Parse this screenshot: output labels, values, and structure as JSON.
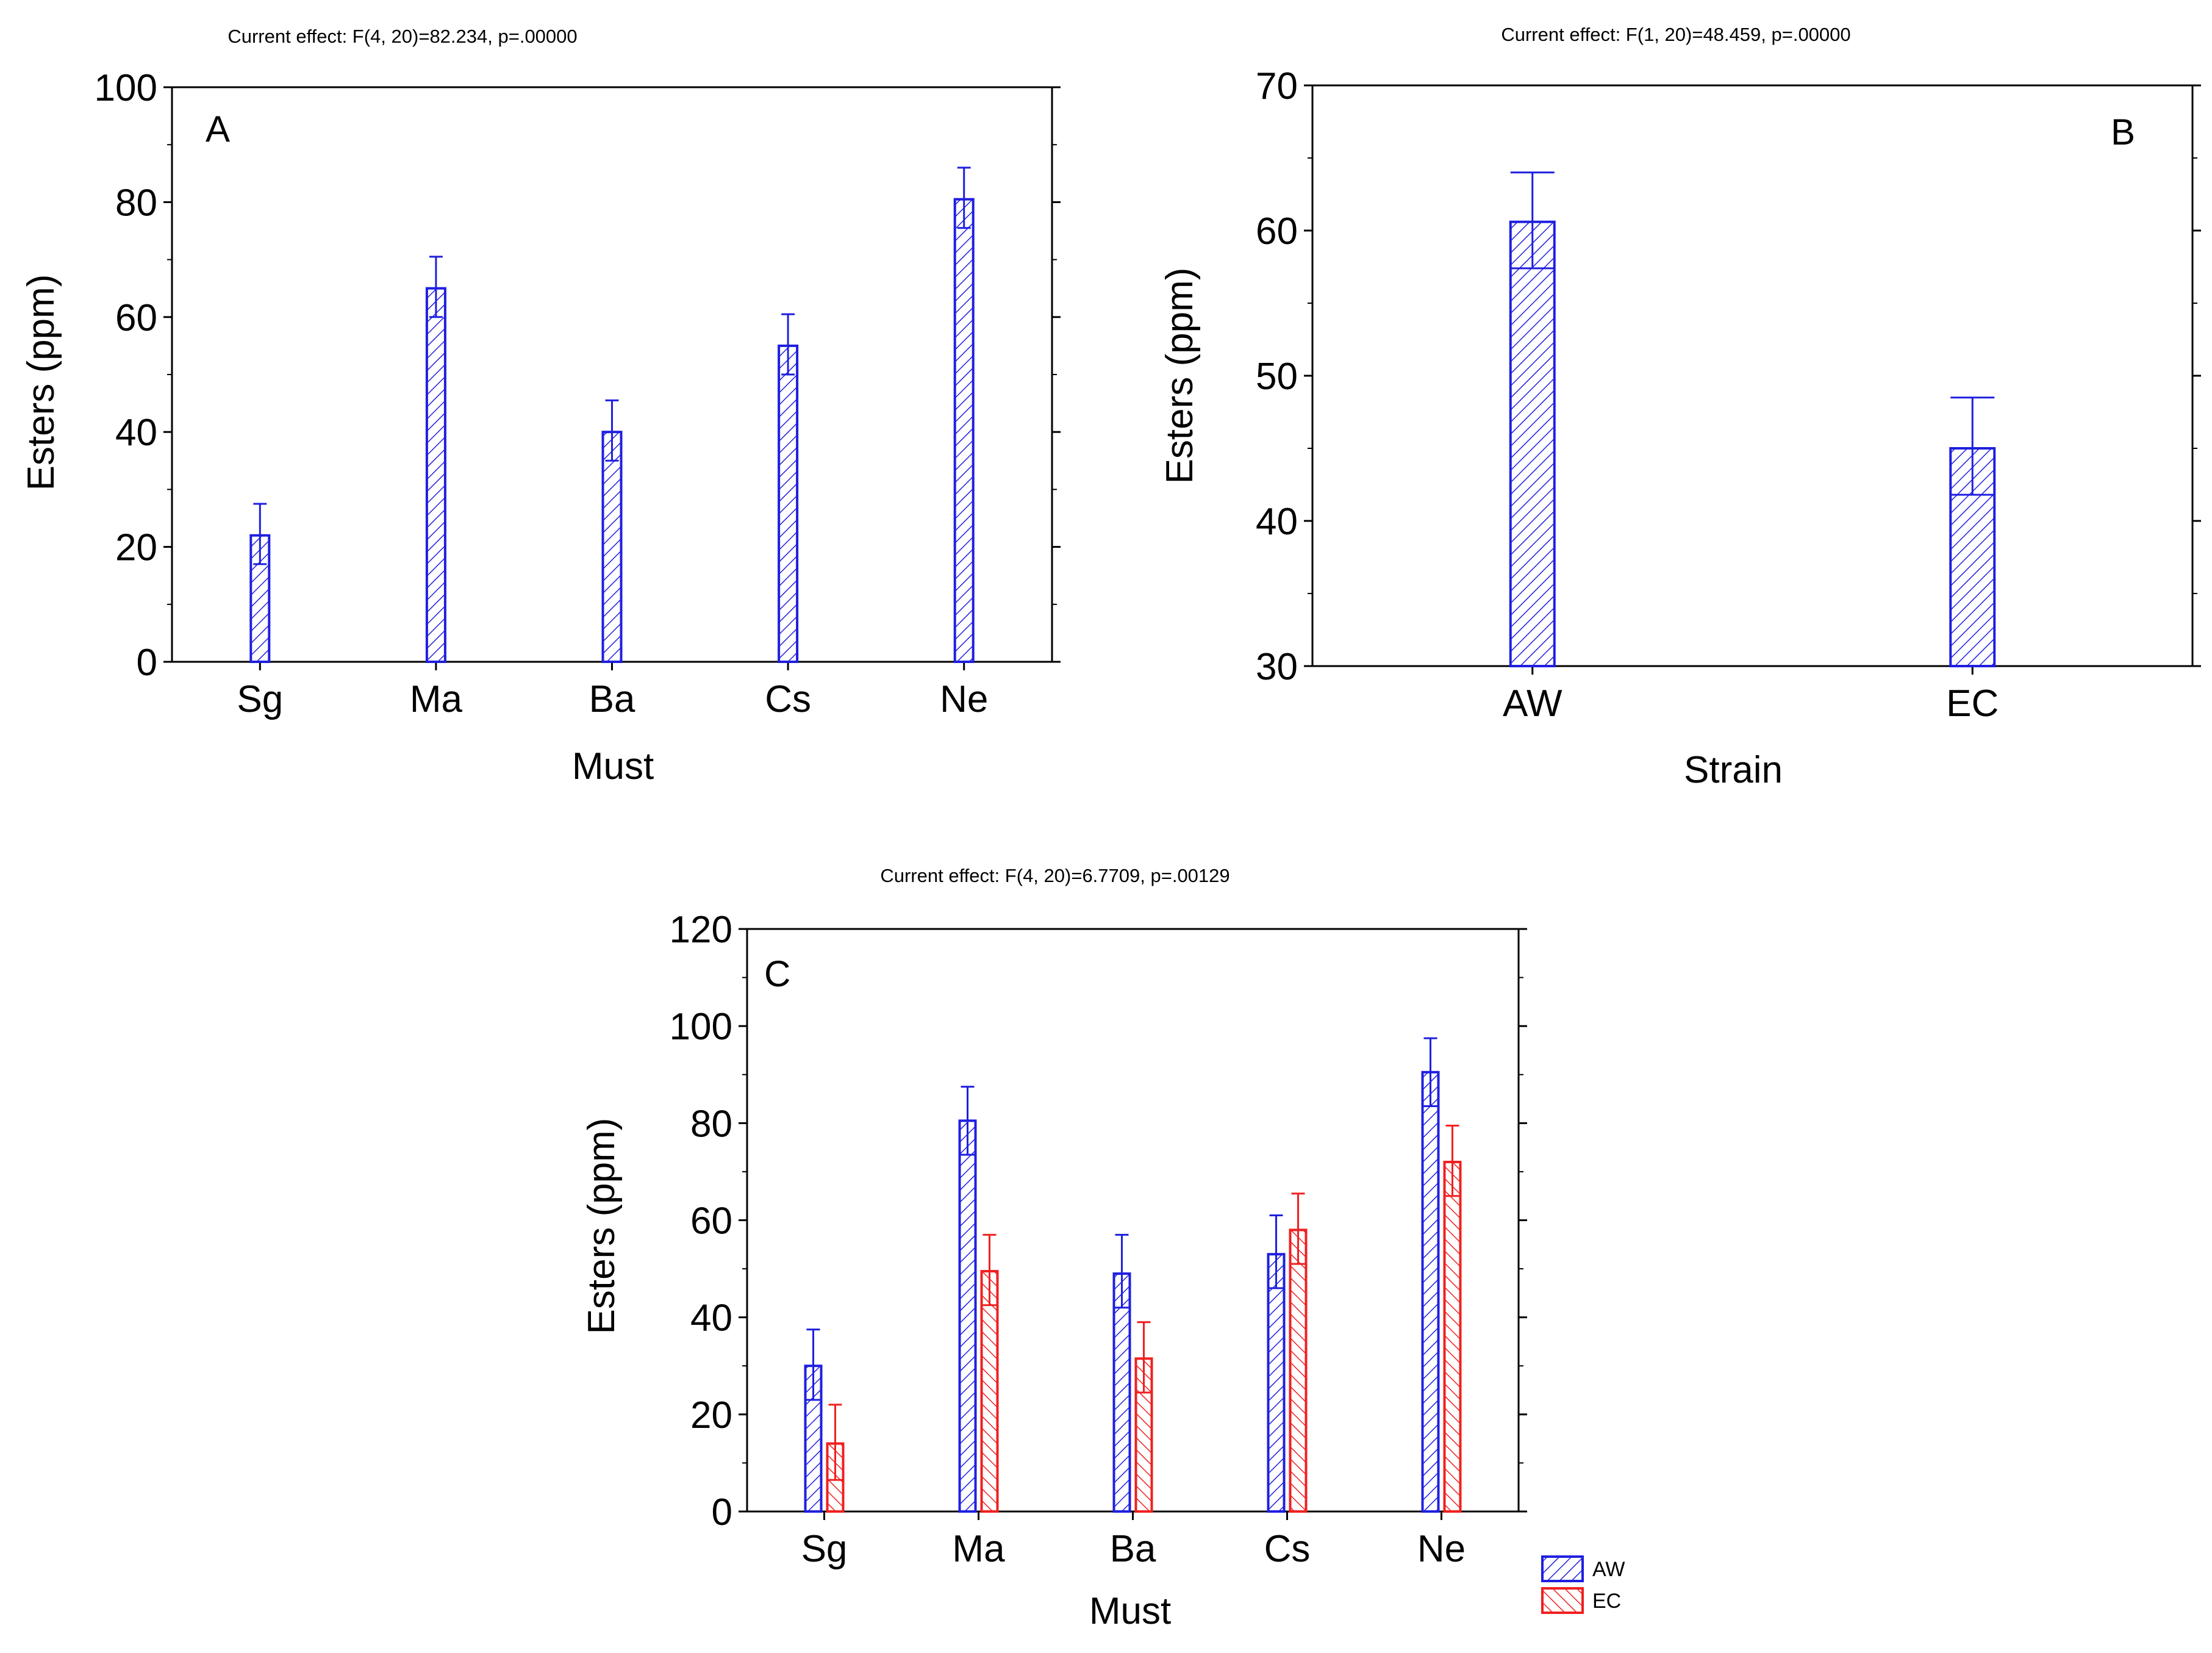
{
  "colors": {
    "AW": "#1f1fe0",
    "EC": "#f02020",
    "axis": "#000000",
    "background": "#ffffff"
  },
  "chart_data": [
    {
      "panel": "A",
      "type": "bar",
      "effect_text": "Current effect: F(4, 20)=82.234, p=.00000",
      "xlabel": "Must",
      "ylabel": "Esters (ppm)",
      "categories": [
        "Sg",
        "Ma",
        "Ba",
        "Cs",
        "Ne"
      ],
      "ylim": [
        0,
        100
      ],
      "yticks": [
        0,
        20,
        40,
        60,
        80,
        100
      ],
      "grid": false,
      "series": [
        {
          "key": "AW",
          "values": [
            22,
            65,
            40,
            55,
            80.5
          ],
          "err_low": [
            17,
            60,
            35,
            50,
            75.5
          ],
          "err_high": [
            27.5,
            70.5,
            45.5,
            60.5,
            86
          ]
        }
      ]
    },
    {
      "panel": "B",
      "type": "bar",
      "effect_text": "Current effect: F(1, 20)=48.459, p=.00000",
      "xlabel": "Strain",
      "ylabel": "Esters (ppm)",
      "categories": [
        "AW",
        "EC"
      ],
      "ylim": [
        30,
        70
      ],
      "yticks": [
        30,
        40,
        50,
        60,
        70
      ],
      "grid": false,
      "series": [
        {
          "key": "AW",
          "values": [
            60.6,
            45
          ],
          "err_low": [
            57.4,
            41.8
          ],
          "err_high": [
            64,
            48.5
          ]
        }
      ]
    },
    {
      "panel": "C",
      "type": "bar",
      "effect_text": "Current effect: F(4, 20)=6.7709, p=.00129",
      "xlabel": "Must",
      "ylabel": "Esters (ppm)",
      "categories": [
        "Sg",
        "Ma",
        "Ba",
        "Cs",
        "Ne"
      ],
      "ylim": [
        0,
        120
      ],
      "yticks": [
        0,
        20,
        40,
        60,
        80,
        100,
        120
      ],
      "grid": false,
      "legend_position": "bottom-right",
      "series": [
        {
          "key": "AW",
          "name": "AW",
          "values": [
            30,
            80.5,
            49,
            53,
            90.5
          ],
          "err_low": [
            23,
            73.5,
            42,
            46,
            83.5
          ],
          "err_high": [
            37.5,
            87.5,
            57,
            61,
            97.5
          ]
        },
        {
          "key": "EC",
          "name": "EC",
          "values": [
            14,
            49.5,
            31.5,
            58,
            72
          ],
          "err_low": [
            6.5,
            42.5,
            24.5,
            51,
            65
          ],
          "err_high": [
            22,
            57,
            39,
            65.5,
            79.5
          ]
        }
      ]
    }
  ]
}
